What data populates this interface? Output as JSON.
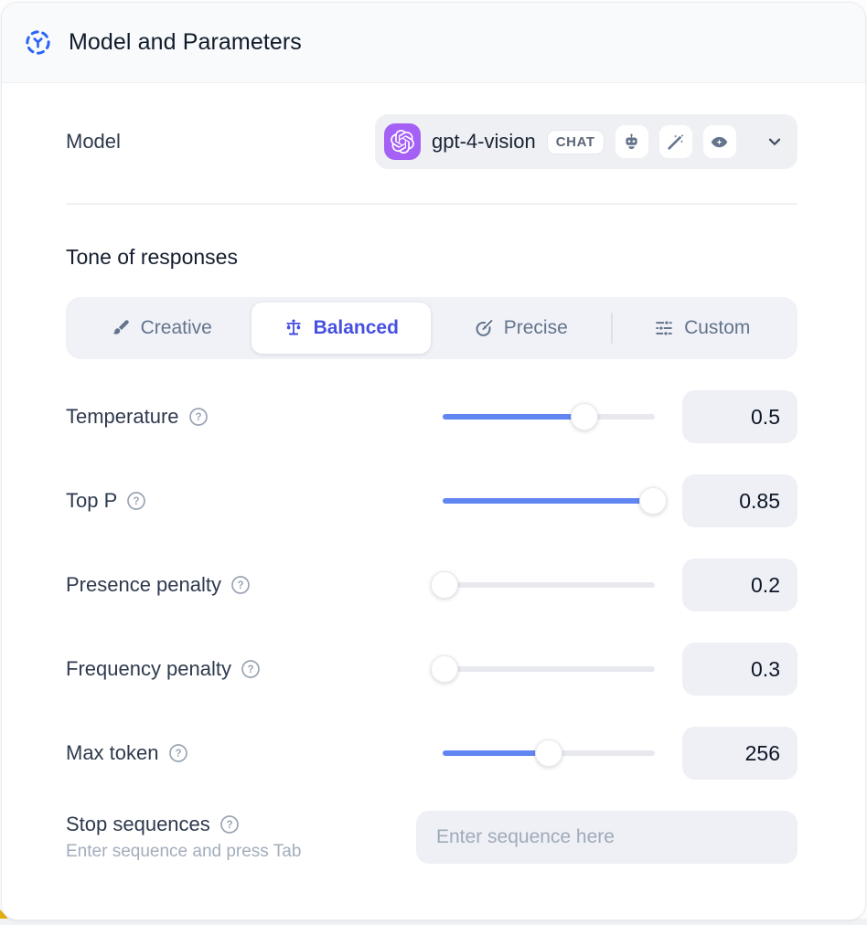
{
  "header": {
    "title": "Model and Parameters"
  },
  "model_row": {
    "label": "Model",
    "selected_model": "gpt-4-vision",
    "type_badge": "CHAT",
    "capability_icons": [
      "robot-plugin-icon",
      "magic-wand-icon",
      "vision-eye-icon"
    ]
  },
  "tone": {
    "heading": "Tone of responses",
    "options": [
      {
        "label": "Creative",
        "icon": "paintbrush-icon",
        "selected": false
      },
      {
        "label": "Balanced",
        "icon": "balance-scale-icon",
        "selected": true
      },
      {
        "label": "Precise",
        "icon": "target-icon",
        "selected": false
      },
      {
        "label": "Custom",
        "icon": "sliders-icon",
        "selected": false
      }
    ]
  },
  "parameters": [
    {
      "label": "Temperature",
      "value": "0.5",
      "slider_percent": 67
    },
    {
      "label": "Top P",
      "value": "0.85",
      "slider_percent": 99
    },
    {
      "label": "Presence penalty",
      "value": "0.2",
      "slider_percent": 1
    },
    {
      "label": "Frequency penalty",
      "value": "0.3",
      "slider_percent": 1
    },
    {
      "label": "Max token",
      "value": "256",
      "slider_percent": 50
    }
  ],
  "stop_sequences": {
    "label": "Stop sequences",
    "helper": "Enter sequence and press Tab",
    "placeholder": "Enter sequence here"
  },
  "colors": {
    "accent_blue": "#6186f2",
    "selected_indigo": "#4650e0",
    "brand_purple": "#a561f5",
    "icon_gray": "#64748b",
    "header_icon_blue": "#2b63f6",
    "warning_yellow": "#e2ae0e"
  }
}
